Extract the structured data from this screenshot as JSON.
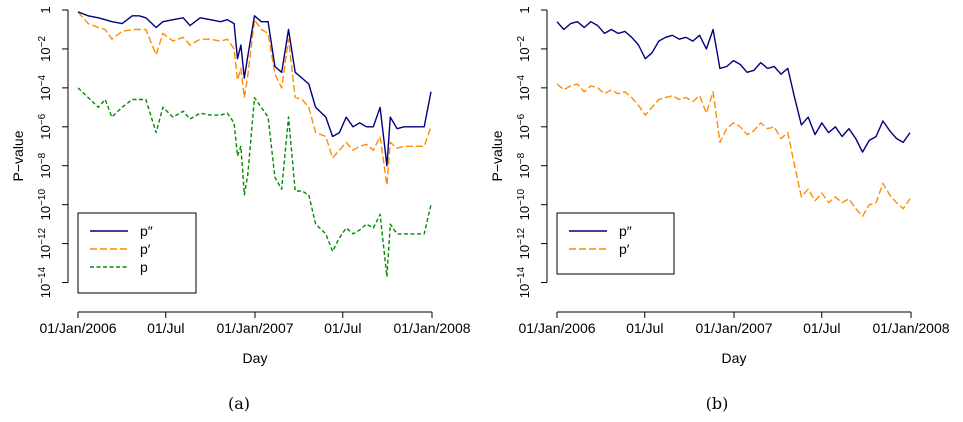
{
  "panels": [
    {
      "caption": "(a)",
      "chart_data": {
        "type": "line",
        "xlabel": "Day",
        "ylabel": "P−value",
        "y_scale": "log10",
        "ylim_log10": [
          -15,
          0
        ],
        "xlim": [
          "2006-01-01",
          "2008-01-01"
        ],
        "x_ticks": [
          {
            "date": "2006-01-01",
            "label": "01/Jan/2006"
          },
          {
            "date": "2006-07-01",
            "label": "01/Jul"
          },
          {
            "date": "2007-01-01",
            "label": "01/Jan/2007"
          },
          {
            "date": "2007-07-01",
            "label": "01/Jul"
          },
          {
            "date": "2008-01-01",
            "label": "01/Jan/2008"
          }
        ],
        "y_ticks": [
          {
            "exp": 0,
            "label": "1"
          },
          {
            "exp": -2,
            "base": "10",
            "sup": "−2"
          },
          {
            "exp": -4,
            "base": "10",
            "sup": "−4"
          },
          {
            "exp": -6,
            "base": "10",
            "sup": "−6"
          },
          {
            "exp": -8,
            "base": "10",
            "sup": "−8"
          },
          {
            "exp": -10,
            "base": "10",
            "sup": "−10"
          },
          {
            "exp": -12,
            "base": "10",
            "sup": "−12"
          },
          {
            "exp": -14,
            "base": "10",
            "sup": "−14"
          }
        ],
        "legend": {
          "position": "bottom-left"
        },
        "series": [
          {
            "name": "p″",
            "color": "#00007f",
            "dash": "solid",
            "x": [
              "2006-01-01",
              "2006-01-22",
              "2006-02-12",
              "2006-02-26",
              "2006-03-12",
              "2006-04-02",
              "2006-04-23",
              "2006-05-07",
              "2006-05-21",
              "2006-06-11",
              "2006-06-25",
              "2006-07-16",
              "2006-08-06",
              "2006-08-20",
              "2006-09-10",
              "2006-10-01",
              "2006-10-22",
              "2006-11-05",
              "2006-11-19",
              "2006-11-26",
              "2006-12-03",
              "2006-12-10",
              "2006-12-17",
              "2006-12-31",
              "2007-01-14",
              "2007-01-28",
              "2007-02-11",
              "2007-02-25",
              "2007-03-11",
              "2007-03-25",
              "2007-04-08",
              "2007-04-22",
              "2007-05-06",
              "2007-05-27",
              "2007-06-10",
              "2007-06-24",
              "2007-07-08",
              "2007-07-22",
              "2007-08-05",
              "2007-08-19",
              "2007-09-02",
              "2007-09-16",
              "2007-09-30",
              "2007-10-07",
              "2007-10-21",
              "2007-11-04",
              "2007-11-25",
              "2007-12-16",
              "2007-12-30"
            ],
            "log10_values": [
              -0.1,
              -0.3,
              -0.4,
              -0.5,
              -0.6,
              -0.7,
              -0.3,
              -0.3,
              -0.4,
              -0.9,
              -0.6,
              -0.5,
              -0.4,
              -0.8,
              -0.4,
              -0.5,
              -0.6,
              -0.5,
              -0.7,
              -2.5,
              -1.8,
              -3.5,
              -2.4,
              -0.3,
              -0.6,
              -0.6,
              -2.9,
              -3.2,
              -1.0,
              -3.2,
              -3.5,
              -3.8,
              -5.0,
              -5.5,
              -6.5,
              -6.3,
              -5.5,
              -6.0,
              -5.8,
              -6.0,
              -6.0,
              -5.0,
              -8.0,
              -5.5,
              -6.1,
              -6.0,
              -6.0,
              -6.0,
              -4.2
            ]
          },
          {
            "name": "p′",
            "color": "#ff8c00",
            "dash": "dashed",
            "x": [
              "2006-01-01",
              "2006-01-22",
              "2006-02-12",
              "2006-02-26",
              "2006-03-12",
              "2006-04-02",
              "2006-04-23",
              "2006-05-07",
              "2006-05-21",
              "2006-06-11",
              "2006-06-25",
              "2006-07-16",
              "2006-08-06",
              "2006-08-20",
              "2006-09-10",
              "2006-10-01",
              "2006-10-22",
              "2006-11-05",
              "2006-11-19",
              "2006-11-26",
              "2006-12-03",
              "2006-12-10",
              "2006-12-17",
              "2006-12-31",
              "2007-01-14",
              "2007-01-28",
              "2007-02-11",
              "2007-02-25",
              "2007-03-11",
              "2007-03-25",
              "2007-04-08",
              "2007-04-22",
              "2007-05-06",
              "2007-05-27",
              "2007-06-10",
              "2007-06-24",
              "2007-07-08",
              "2007-07-22",
              "2007-08-05",
              "2007-08-19",
              "2007-09-02",
              "2007-09-16",
              "2007-09-30",
              "2007-10-07",
              "2007-10-21",
              "2007-11-04",
              "2007-11-25",
              "2007-12-16",
              "2007-12-30"
            ],
            "log10_values": [
              -0.1,
              -0.7,
              -0.9,
              -1.0,
              -1.5,
              -1.1,
              -1.0,
              -1.0,
              -1.0,
              -2.3,
              -1.2,
              -1.6,
              -1.4,
              -1.8,
              -1.5,
              -1.5,
              -1.6,
              -1.5,
              -2.0,
              -3.6,
              -3.0,
              -4.5,
              -3.4,
              -0.5,
              -1.0,
              -1.2,
              -3.3,
              -4.0,
              -1.5,
              -4.5,
              -4.6,
              -5.0,
              -6.3,
              -6.5,
              -7.6,
              -7.2,
              -6.8,
              -7.2,
              -7.0,
              -6.9,
              -7.2,
              -6.5,
              -9.0,
              -6.8,
              -7.1,
              -7.0,
              -7.0,
              -7.0,
              -6.0
            ]
          },
          {
            "name": "p",
            "color": "#008c00",
            "dash": "dotted",
            "x": [
              "2006-01-01",
              "2006-01-22",
              "2006-02-12",
              "2006-02-26",
              "2006-03-12",
              "2006-04-02",
              "2006-04-23",
              "2006-05-07",
              "2006-05-21",
              "2006-06-11",
              "2006-06-25",
              "2006-07-16",
              "2006-08-06",
              "2006-08-20",
              "2006-09-10",
              "2006-10-01",
              "2006-10-22",
              "2006-11-05",
              "2006-11-19",
              "2006-11-26",
              "2006-12-03",
              "2006-12-10",
              "2006-12-17",
              "2006-12-31",
              "2007-01-14",
              "2007-01-28",
              "2007-02-11",
              "2007-02-25",
              "2007-03-11",
              "2007-03-25",
              "2007-04-08",
              "2007-04-22",
              "2007-05-06",
              "2007-05-27",
              "2007-06-10",
              "2007-06-24",
              "2007-07-08",
              "2007-07-22",
              "2007-08-05",
              "2007-08-19",
              "2007-09-02",
              "2007-09-16",
              "2007-09-30",
              "2007-10-07",
              "2007-10-21",
              "2007-11-04",
              "2007-11-25",
              "2007-12-16",
              "2007-12-30"
            ],
            "log10_values": [
              -4.0,
              -4.5,
              -5.0,
              -4.6,
              -5.5,
              -5.0,
              -4.6,
              -4.6,
              -4.6,
              -6.3,
              -5.0,
              -5.5,
              -5.2,
              -5.6,
              -5.3,
              -5.4,
              -5.4,
              -5.3,
              -5.8,
              -7.5,
              -7.0,
              -9.5,
              -8.5,
              -4.5,
              -5.0,
              -5.5,
              -8.6,
              -9.2,
              -5.5,
              -9.3,
              -9.3,
              -9.5,
              -11.0,
              -11.5,
              -12.4,
              -11.7,
              -11.2,
              -11.5,
              -11.3,
              -11.0,
              -11.2,
              -10.5,
              -13.7,
              -11.0,
              -11.5,
              -11.5,
              -11.5,
              -11.5,
              -10.0
            ]
          }
        ]
      }
    },
    {
      "caption": "(b)",
      "chart_data": {
        "type": "line",
        "xlabel": "Day",
        "ylabel": "P−value",
        "y_scale": "log10",
        "ylim_log10": [
          -15,
          0
        ],
        "xlim": [
          "2006-01-01",
          "2008-01-01"
        ],
        "x_ticks": [
          {
            "date": "2006-01-01",
            "label": "01/Jan/2006"
          },
          {
            "date": "2006-07-01",
            "label": "01/Jul"
          },
          {
            "date": "2007-01-01",
            "label": "01/Jan/2007"
          },
          {
            "date": "2007-07-01",
            "label": "01/Jul"
          },
          {
            "date": "2008-01-01",
            "label": "01/Jan/2008"
          }
        ],
        "y_ticks": [
          {
            "exp": 0,
            "label": "1"
          },
          {
            "exp": -2,
            "base": "10",
            "sup": "−2"
          },
          {
            "exp": -4,
            "base": "10",
            "sup": "−4"
          },
          {
            "exp": -6,
            "base": "10",
            "sup": "−6"
          },
          {
            "exp": -8,
            "base": "10",
            "sup": "−8"
          },
          {
            "exp": -10,
            "base": "10",
            "sup": "−10"
          },
          {
            "exp": -12,
            "base": "10",
            "sup": "−12"
          },
          {
            "exp": -14,
            "base": "10",
            "sup": "−14"
          }
        ],
        "legend": {
          "position": "bottom-left"
        },
        "series": [
          {
            "name": "p″",
            "color": "#00007f",
            "dash": "solid",
            "x": [
              "2006-01-01",
              "2006-01-15",
              "2006-01-29",
              "2006-02-12",
              "2006-02-26",
              "2006-03-12",
              "2006-03-26",
              "2006-04-09",
              "2006-04-23",
              "2006-05-07",
              "2006-05-21",
              "2006-06-04",
              "2006-06-18",
              "2006-07-02",
              "2006-07-16",
              "2006-07-30",
              "2006-08-13",
              "2006-08-27",
              "2006-09-10",
              "2006-09-24",
              "2006-10-08",
              "2006-10-22",
              "2006-11-05",
              "2006-11-19",
              "2006-12-03",
              "2006-12-17",
              "2006-12-31",
              "2007-01-14",
              "2007-01-28",
              "2007-02-11",
              "2007-02-25",
              "2007-03-11",
              "2007-03-25",
              "2007-04-08",
              "2007-04-22",
              "2007-05-06",
              "2007-05-20",
              "2007-06-03",
              "2007-06-17",
              "2007-07-01",
              "2007-07-15",
              "2007-07-29",
              "2007-08-12",
              "2007-08-26",
              "2007-09-09",
              "2007-09-23",
              "2007-10-07",
              "2007-10-21",
              "2007-11-04",
              "2007-11-18",
              "2007-12-02",
              "2007-12-16",
              "2007-12-30"
            ],
            "log10_values": [
              -0.6,
              -1.0,
              -0.7,
              -0.6,
              -0.9,
              -0.6,
              -0.8,
              -1.2,
              -1.0,
              -1.2,
              -1.1,
              -1.4,
              -1.8,
              -2.5,
              -2.2,
              -1.6,
              -1.4,
              -1.3,
              -1.5,
              -1.4,
              -1.6,
              -1.3,
              -2.0,
              -1.0,
              -3.0,
              -2.9,
              -2.6,
              -2.8,
              -3.2,
              -3.1,
              -2.7,
              -3.0,
              -2.9,
              -3.3,
              -3.0,
              -4.5,
              -5.9,
              -5.5,
              -6.4,
              -5.8,
              -6.3,
              -6.0,
              -6.5,
              -6.1,
              -6.6,
              -7.3,
              -6.7,
              -6.5,
              -5.7,
              -6.2,
              -6.6,
              -6.8,
              -6.3
            ]
          },
          {
            "name": "p′",
            "color": "#ff8c00",
            "dash": "dashed",
            "x": [
              "2006-01-01",
              "2006-01-15",
              "2006-01-29",
              "2006-02-12",
              "2006-02-26",
              "2006-03-12",
              "2006-03-26",
              "2006-04-09",
              "2006-04-23",
              "2006-05-07",
              "2006-05-21",
              "2006-06-04",
              "2006-06-18",
              "2006-07-02",
              "2006-07-16",
              "2006-07-30",
              "2006-08-13",
              "2006-08-27",
              "2006-09-10",
              "2006-09-24",
              "2006-10-08",
              "2006-10-22",
              "2006-11-05",
              "2006-11-19",
              "2006-12-03",
              "2006-12-17",
              "2006-12-31",
              "2007-01-14",
              "2007-01-28",
              "2007-02-11",
              "2007-02-25",
              "2007-03-11",
              "2007-03-25",
              "2007-04-08",
              "2007-04-22",
              "2007-05-06",
              "2007-05-20",
              "2007-06-03",
              "2007-06-17",
              "2007-07-01",
              "2007-07-15",
              "2007-07-29",
              "2007-08-12",
              "2007-08-26",
              "2007-09-09",
              "2007-09-23",
              "2007-10-07",
              "2007-10-21",
              "2007-11-04",
              "2007-11-18",
              "2007-12-02",
              "2007-12-16",
              "2007-12-30"
            ],
            "log10_values": [
              -3.8,
              -4.1,
              -3.9,
              -3.8,
              -4.2,
              -3.9,
              -4.0,
              -4.3,
              -4.1,
              -4.3,
              -4.2,
              -4.5,
              -4.9,
              -5.4,
              -5.0,
              -4.6,
              -4.5,
              -4.4,
              -4.6,
              -4.5,
              -4.7,
              -4.4,
              -5.3,
              -4.2,
              -6.8,
              -6.1,
              -5.8,
              -6.0,
              -6.4,
              -6.2,
              -5.8,
              -6.1,
              -6.0,
              -6.6,
              -6.3,
              -8.0,
              -9.6,
              -9.2,
              -9.8,
              -9.4,
              -9.9,
              -9.6,
              -9.9,
              -9.7,
              -10.2,
              -10.6,
              -10.0,
              -9.9,
              -8.9,
              -9.5,
              -9.9,
              -10.2,
              -9.7
            ]
          }
        ]
      }
    }
  ]
}
